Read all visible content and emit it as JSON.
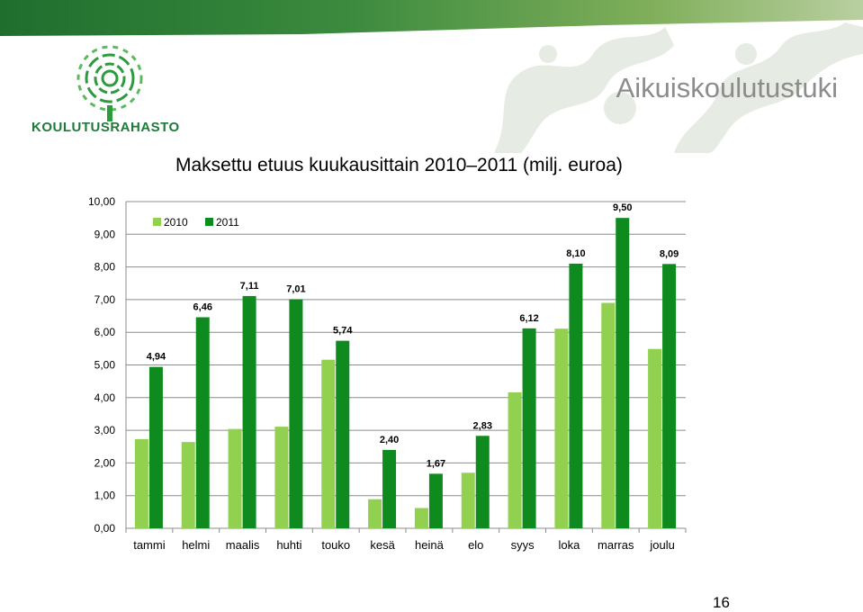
{
  "brand": {
    "logo_text": "KOULUTUSRAHASTO",
    "title": "Aikuiskoulutustuki"
  },
  "slide_number": "16",
  "colors": {
    "series_2010": "#92d050",
    "series_2011": "#0f8a1e",
    "brand_green": "#1f7a3a"
  },
  "chart_data": {
    "type": "bar",
    "title": "Maksettu etuus kuukausittain 2010–2011 (milj. euroa)",
    "categories": [
      "tammi",
      "helmi",
      "maalis",
      "huhti",
      "touko",
      "kesä",
      "heinä",
      "elo",
      "syys",
      "loka",
      "marras",
      "joulu"
    ],
    "series": [
      {
        "name": "2010",
        "values": [
          2.73,
          2.64,
          3.04,
          3.11,
          5.16,
          0.89,
          0.62,
          1.7,
          4.16,
          6.11,
          6.9,
          5.49
        ],
        "labels": [
          "",
          "",
          "",
          "",
          "",
          "",
          "",
          "",
          "",
          "",
          "",
          ""
        ]
      },
      {
        "name": "2011",
        "values": [
          4.94,
          6.46,
          7.11,
          7.01,
          5.74,
          2.4,
          1.67,
          2.83,
          6.12,
          8.1,
          9.5,
          8.09
        ],
        "labels": [
          "4,94",
          "6,46",
          "7,11",
          "7,01",
          "5,74",
          "2,40",
          "1,67",
          "2,83",
          "6,12",
          "8,10",
          "9,50",
          "8,09"
        ]
      }
    ],
    "ylim": [
      0,
      10
    ],
    "yticks": [
      0,
      1,
      2,
      3,
      4,
      5,
      6,
      7,
      8,
      9,
      10
    ],
    "ytick_labels": [
      "0,00",
      "1,00",
      "2,00",
      "3,00",
      "4,00",
      "5,00",
      "6,00",
      "7,00",
      "8,00",
      "9,00",
      "10,00"
    ],
    "grid": true,
    "legend_position": "top-left"
  }
}
